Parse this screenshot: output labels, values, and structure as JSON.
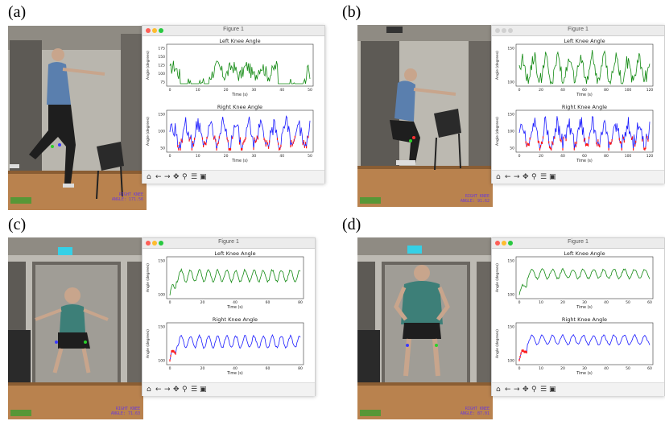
{
  "panels": [
    {
      "label": "(a)",
      "window_title": "Figure 1",
      "left_chart_title": "Left Knee Angle",
      "right_chart_title": "Right Knee Angle",
      "ylabel": "Angle (degrees)",
      "xlabel": "Time (s)",
      "left_yticks": [
        "175",
        "150",
        "125",
        "100",
        "75"
      ],
      "right_yticks": [
        "150",
        "100",
        "50"
      ],
      "xticks": [
        "0",
        "10",
        "20",
        "30",
        "40",
        "50"
      ],
      "overlay_right": "RIGHT KNEE",
      "overlay_angle": "ANGLE: 171.56"
    },
    {
      "label": "(b)",
      "window_title": "Figure 1",
      "left_chart_title": "Left Knee Angle",
      "right_chart_title": "Right Knee Angle",
      "ylabel": "Angle (degrees)",
      "xlabel": "Time (s)",
      "left_yticks": [
        "150",
        "100"
      ],
      "right_yticks": [
        "150",
        "100",
        "50"
      ],
      "xticks": [
        "0",
        "20",
        "40",
        "60",
        "80",
        "100",
        "120"
      ],
      "overlay_right": "RIGHT KNEE",
      "overlay_angle": "ANGLE: 91.62"
    },
    {
      "label": "(c)",
      "window_title": "Figure 1",
      "left_chart_title": "Left Knee Angle",
      "right_chart_title": "Right Knee Angle",
      "ylabel": "Angle (degrees)",
      "xlabel": "Time (s)",
      "left_yticks": [
        "150",
        "100"
      ],
      "right_yticks": [
        "150",
        "100"
      ],
      "xticks": [
        "0",
        "20",
        "40",
        "60",
        "80"
      ],
      "overlay_right": "RIGHT KNEE",
      "overlay_angle": "ANGLE: 71.63"
    },
    {
      "label": "(d)",
      "window_title": "Figure 1",
      "left_chart_title": "Left Knee Angle",
      "right_chart_title": "Right Knee Angle",
      "ylabel": "Angle (degrees)",
      "xlabel": "Time (s)",
      "left_yticks": [
        "150",
        "100"
      ],
      "right_yticks": [
        "150",
        "100"
      ],
      "xticks": [
        "0",
        "10",
        "20",
        "30",
        "40",
        "50",
        "60"
      ],
      "overlay_right": "RIGHT KNEE",
      "overlay_angle": "ANGLE: 87.01"
    }
  ],
  "toolbar_icons": [
    "home-icon",
    "back-icon",
    "forward-icon",
    "pan-icon",
    "zoom-icon",
    "configure-icon",
    "save-icon"
  ],
  "colors": {
    "left_series": "#138a13",
    "right_series": "#1a1aff",
    "right_highlight": "#ff1a1a",
    "close": "#fe5f57",
    "minimize": "#febc2e",
    "maximize": "#28c840"
  }
}
